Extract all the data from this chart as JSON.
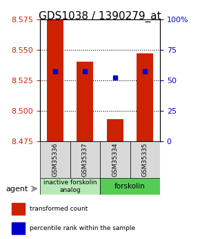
{
  "title": "GDS1038 / 1390279_at",
  "samples": [
    "GSM35336",
    "GSM35337",
    "GSM35334",
    "GSM35335"
  ],
  "bar_values": [
    8.575,
    8.54,
    8.493,
    8.547
  ],
  "bar_base": 8.475,
  "percentile_values": [
    57,
    57,
    52,
    57
  ],
  "ylim_left": [
    8.475,
    8.575
  ],
  "ylim_right": [
    0,
    100
  ],
  "yticks_left": [
    8.475,
    8.5,
    8.525,
    8.55,
    8.575
  ],
  "yticks_right": [
    0,
    25,
    50,
    75,
    100
  ],
  "grid_ticks": [
    8.5,
    8.525,
    8.55
  ],
  "bar_color": "#cc2200",
  "blue_color": "#0000cc",
  "bg_color": "#ffffff",
  "group1_label": "inactive forskolin\nanalog",
  "group2_label": "forskolin",
  "agent_label": "agent",
  "legend_bar": "transformed count",
  "legend_dot": "percentile rank within the sample",
  "left_tick_color": "#cc2200",
  "right_tick_color": "#0000cc",
  "title_fontsize": 11,
  "tick_fontsize": 8,
  "bar_width": 0.55,
  "group1_color": "#b8e8b8",
  "group2_color": "#55cc55"
}
